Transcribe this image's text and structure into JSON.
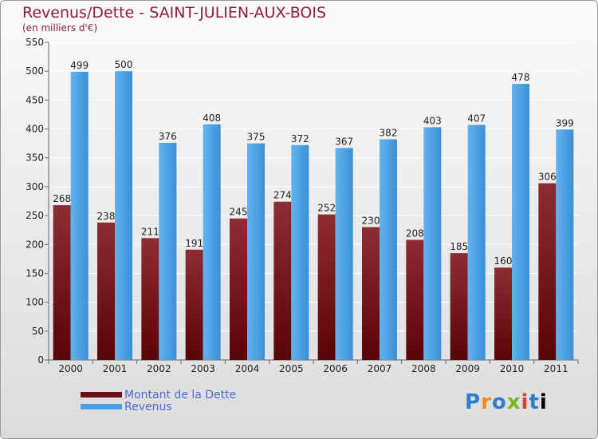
{
  "chart_data": {
    "type": "bar",
    "title": "Revenus/Dette - SAINT-JULIEN-AUX-BOIS",
    "subtitle": "(en milliers d'€)",
    "xlabel": "",
    "ylabel": "",
    "ylim": [
      0,
      550
    ],
    "yticks": [
      0,
      50,
      100,
      150,
      200,
      250,
      300,
      350,
      400,
      450,
      500,
      550
    ],
    "grid": true,
    "categories": [
      "2000",
      "2001",
      "2002",
      "2003",
      "2004",
      "2005",
      "2006",
      "2007",
      "2008",
      "2009",
      "2010",
      "2011"
    ],
    "series": [
      {
        "name": "Montant de la Dette",
        "color": "#7a1a1f",
        "values": [
          268,
          238,
          211,
          191,
          245,
          274,
          252,
          230,
          208,
          185,
          160,
          306
        ]
      },
      {
        "name": "Revenus",
        "color": "#4a9ee2",
        "values": [
          499,
          500,
          376,
          408,
          375,
          372,
          367,
          382,
          403,
          407,
          478,
          399
        ]
      }
    ],
    "legend": "bottom-left"
  },
  "logo": {
    "letters": [
      "P",
      "r",
      "o",
      "x",
      "i",
      "t",
      "i"
    ]
  }
}
